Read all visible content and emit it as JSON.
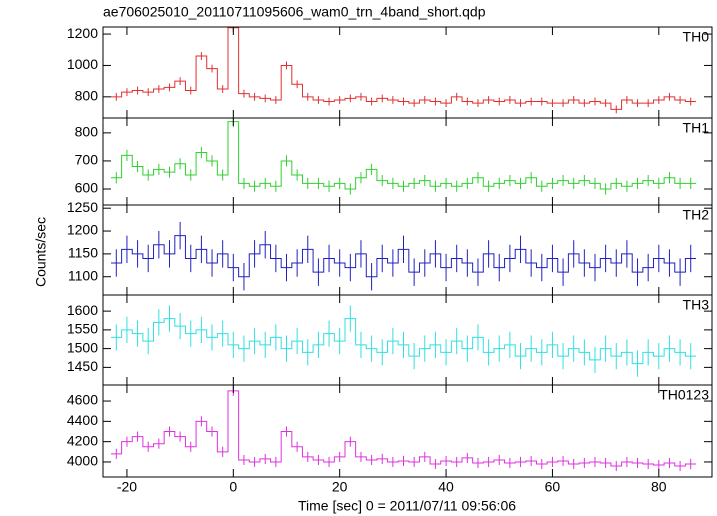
{
  "chart_data": [
    {
      "type": "line",
      "title": "ae706025010_20110711095606_wam0_trn_4band_short.qdp",
      "label": "TH0",
      "color": "#e03030",
      "xlim": [
        -24.5,
        90
      ],
      "xticks": [
        -20,
        0,
        20,
        40,
        60,
        80
      ],
      "ylim": [
        665,
        1245
      ],
      "yticks": [
        800,
        1000,
        1200
      ],
      "error": 25,
      "x": [
        -22,
        -20,
        -18,
        -16,
        -14,
        -12,
        -10,
        -8,
        -6,
        -4,
        -2,
        0,
        2,
        4,
        6,
        8,
        10,
        12,
        14,
        16,
        18,
        20,
        22,
        24,
        26,
        28,
        30,
        32,
        34,
        36,
        38,
        40,
        42,
        44,
        46,
        48,
        50,
        52,
        54,
        56,
        58,
        60,
        62,
        64,
        66,
        68,
        70,
        72,
        74,
        76,
        78,
        80,
        82,
        84,
        86
      ],
      "values": [
        800,
        830,
        840,
        830,
        850,
        860,
        900,
        840,
        1060,
        980,
        850,
        1240,
        820,
        800,
        790,
        780,
        1000,
        880,
        800,
        780,
        770,
        780,
        790,
        800,
        770,
        790,
        780,
        770,
        760,
        780,
        770,
        760,
        800,
        770,
        760,
        780,
        770,
        780,
        760,
        770,
        770,
        760,
        760,
        780,
        760,
        770,
        760,
        720,
        780,
        760,
        760,
        780,
        800,
        780,
        770
      ]
    },
    {
      "type": "line",
      "label": "TH1",
      "color": "#30d030",
      "xlim": [
        -24.5,
        90
      ],
      "xticks": [
        -20,
        0,
        20,
        40,
        60,
        80
      ],
      "ylim": [
        543,
        853
      ],
      "yticks": [
        600,
        700,
        800
      ],
      "error": 20,
      "x": [
        -22,
        -20,
        -18,
        -16,
        -14,
        -12,
        -10,
        -8,
        -6,
        -4,
        -2,
        0,
        2,
        4,
        6,
        8,
        10,
        12,
        14,
        16,
        18,
        20,
        22,
        24,
        26,
        28,
        30,
        32,
        34,
        36,
        38,
        40,
        42,
        44,
        46,
        48,
        50,
        52,
        54,
        56,
        58,
        60,
        62,
        64,
        66,
        68,
        70,
        72,
        74,
        76,
        78,
        80,
        82,
        84,
        86
      ],
      "values": [
        640,
        720,
        680,
        650,
        670,
        660,
        690,
        650,
        730,
        700,
        650,
        840,
        620,
        610,
        620,
        610,
        700,
        650,
        620,
        620,
        610,
        620,
        600,
        640,
        670,
        630,
        620,
        610,
        620,
        630,
        610,
        620,
        610,
        620,
        640,
        610,
        620,
        630,
        620,
        640,
        610,
        620,
        630,
        620,
        630,
        620,
        600,
        620,
        610,
        620,
        630,
        620,
        640,
        620,
        620
      ]
    },
    {
      "type": "line",
      "label": "TH2",
      "ylabel": "Counts/sec",
      "color": "#2020c0",
      "xlim": [
        -24.5,
        90
      ],
      "xticks": [
        -20,
        0,
        20,
        40,
        60,
        80
      ],
      "ylim": [
        1060,
        1257
      ],
      "yticks": [
        1100,
        1150,
        1200,
        1250
      ],
      "error": 30,
      "x": [
        -22,
        -20,
        -18,
        -16,
        -14,
        -12,
        -10,
        -8,
        -6,
        -4,
        -2,
        0,
        2,
        4,
        6,
        8,
        10,
        12,
        14,
        16,
        18,
        20,
        22,
        24,
        26,
        28,
        30,
        32,
        34,
        36,
        38,
        40,
        42,
        44,
        46,
        48,
        50,
        52,
        54,
        56,
        58,
        60,
        62,
        64,
        66,
        68,
        70,
        72,
        74,
        76,
        78,
        80,
        82,
        84,
        86
      ],
      "values": [
        1130,
        1160,
        1150,
        1140,
        1170,
        1150,
        1190,
        1140,
        1160,
        1130,
        1150,
        1120,
        1100,
        1150,
        1170,
        1140,
        1120,
        1130,
        1160,
        1110,
        1140,
        1130,
        1120,
        1150,
        1100,
        1140,
        1130,
        1160,
        1110,
        1130,
        1150,
        1120,
        1140,
        1130,
        1110,
        1150,
        1120,
        1140,
        1160,
        1130,
        1120,
        1140,
        1110,
        1150,
        1130,
        1120,
        1140,
        1130,
        1150,
        1110,
        1120,
        1140,
        1130,
        1110,
        1140
      ]
    },
    {
      "type": "line",
      "label": "TH3",
      "color": "#30e0e0",
      "xlim": [
        -24.5,
        90
      ],
      "xticks": [
        -20,
        0,
        20,
        40,
        60,
        80
      ],
      "ylim": [
        1403,
        1643
      ],
      "yticks": [
        1450,
        1500,
        1550,
        1600
      ],
      "error": 35,
      "x": [
        -22,
        -20,
        -18,
        -16,
        -14,
        -12,
        -10,
        -8,
        -6,
        -4,
        -2,
        0,
        2,
        4,
        6,
        8,
        10,
        12,
        14,
        16,
        18,
        20,
        22,
        24,
        26,
        28,
        30,
        32,
        34,
        36,
        38,
        40,
        42,
        44,
        46,
        48,
        50,
        52,
        54,
        56,
        58,
        60,
        62,
        64,
        66,
        68,
        70,
        72,
        74,
        76,
        78,
        80,
        82,
        84,
        86
      ],
      "values": [
        1530,
        1550,
        1540,
        1520,
        1570,
        1580,
        1560,
        1540,
        1550,
        1530,
        1540,
        1510,
        1500,
        1520,
        1510,
        1530,
        1500,
        1520,
        1490,
        1510,
        1540,
        1520,
        1580,
        1510,
        1500,
        1490,
        1520,
        1510,
        1480,
        1500,
        1510,
        1490,
        1520,
        1500,
        1530,
        1490,
        1500,
        1510,
        1480,
        1500,
        1490,
        1510,
        1480,
        1500,
        1490,
        1470,
        1500,
        1480,
        1490,
        1460,
        1490,
        1480,
        1500,
        1490,
        1480
      ]
    },
    {
      "type": "line",
      "label": "TH0123",
      "xlabel": "Time [sec] 0 = 2011/07/11 09:56:06",
      "color": "#e030e0",
      "xlim": [
        -24.5,
        90
      ],
      "xticks": [
        -20,
        0,
        20,
        40,
        60,
        80
      ],
      "ylim": [
        3852,
        4758
      ],
      "yticks": [
        4000,
        4200,
        4400,
        4600
      ],
      "error": 50,
      "x": [
        -22,
        -20,
        -18,
        -16,
        -14,
        -12,
        -10,
        -8,
        -6,
        -4,
        -2,
        0,
        2,
        4,
        6,
        8,
        10,
        12,
        14,
        16,
        18,
        20,
        22,
        24,
        26,
        28,
        30,
        32,
        34,
        36,
        38,
        40,
        42,
        44,
        46,
        48,
        50,
        52,
        54,
        56,
        58,
        60,
        62,
        64,
        66,
        68,
        70,
        72,
        74,
        76,
        78,
        80,
        82,
        84,
        86
      ],
      "values": [
        4080,
        4200,
        4250,
        4150,
        4180,
        4300,
        4250,
        4150,
        4400,
        4300,
        4100,
        4700,
        4020,
        4000,
        4030,
        4000,
        4300,
        4150,
        4050,
        4020,
        4000,
        4050,
        4200,
        4050,
        4020,
        4030,
        4000,
        4010,
        4000,
        4050,
        3980,
        4010,
        4000,
        4040,
        3990,
        4000,
        4020,
        3990,
        4000,
        4010,
        3980,
        4000,
        4010,
        3980,
        3990,
        4000,
        3990,
        3960,
        4000,
        3990,
        3980,
        3970,
        3990,
        3960,
        3980
      ]
    }
  ]
}
